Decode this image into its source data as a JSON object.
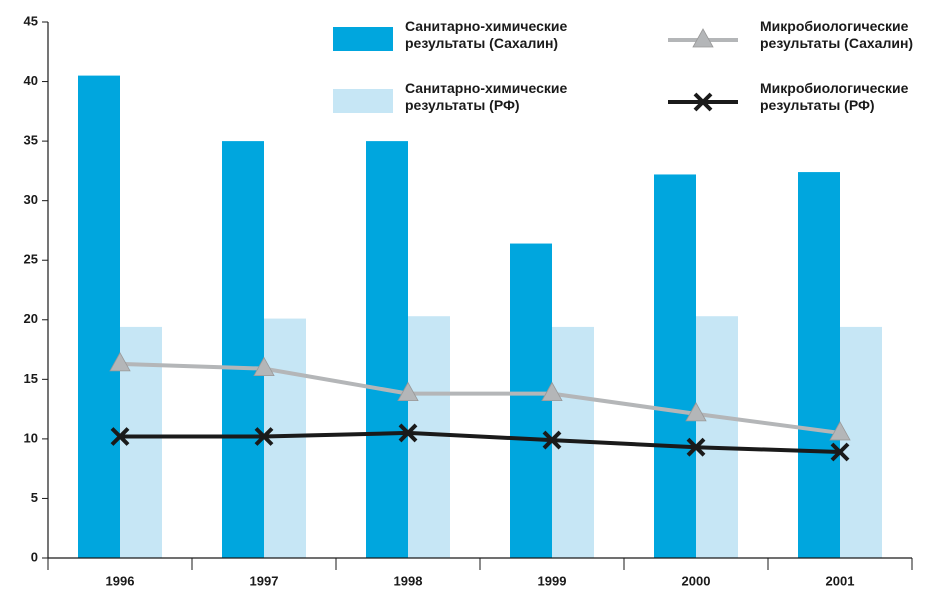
{
  "chart_data": {
    "type": "bar",
    "categories": [
      "1996",
      "1997",
      "1998",
      "1999",
      "2000",
      "2001"
    ],
    "series": [
      {
        "name": "Санитарно-химические результаты (Сахалин)",
        "type": "bar",
        "color": "#00a6de",
        "values": [
          40.5,
          35,
          35,
          26.4,
          32.2,
          32.4
        ]
      },
      {
        "name": "Санитарно-химические результаты (РФ)",
        "type": "bar",
        "color": "#c6e6f5",
        "values": [
          19.4,
          20.1,
          20.3,
          19.4,
          20.3,
          19.4
        ]
      },
      {
        "name": "Микробиологические результаты (Сахалин)",
        "type": "line",
        "marker": "triangle",
        "color": "#b4b6b8",
        "values": [
          16.3,
          15.9,
          13.8,
          13.8,
          12.1,
          10.5
        ]
      },
      {
        "name": "Микробиологические результаты (РФ)",
        "type": "line",
        "marker": "x",
        "color": "#1a1a1a",
        "values": [
          10.2,
          10.2,
          10.5,
          9.9,
          9.3,
          8.9
        ]
      }
    ],
    "ylim": [
      0,
      45
    ],
    "yticks": [
      0,
      5,
      10,
      15,
      20,
      25,
      30,
      35,
      40,
      45
    ],
    "grid": false
  }
}
